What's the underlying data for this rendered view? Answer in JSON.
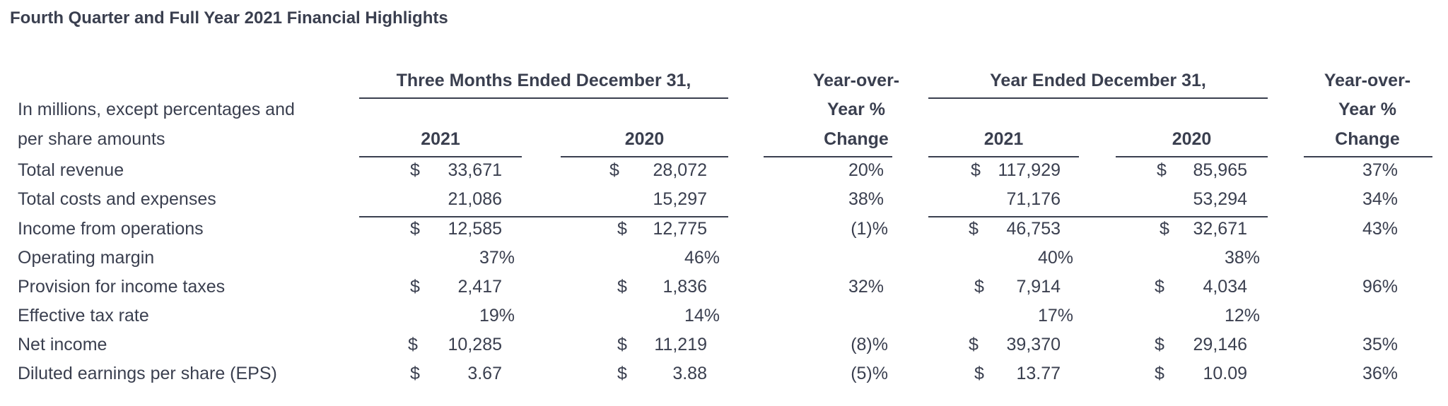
{
  "title": "Fourth Quarter and Full Year 2021 Financial Highlights",
  "header": {
    "group_q": "Three Months Ended December 31,",
    "group_y": "Year Ended December 31,",
    "yoy_line1": "Year-over-",
    "yoy_line2": "Year %",
    "yoy_line3": "Change",
    "desc_line1": "In millions, except percentages and",
    "desc_line2": "per share amounts",
    "col_q2021": "2021",
    "col_q2020": "2020",
    "col_y2021": "2021",
    "col_y2020": "2020"
  },
  "rows": [
    {
      "label": "Total revenue",
      "q21_sym": "$",
      "q21": "33,671",
      "q20_sym": "$",
      "q20": "28,072",
      "qchg": "20%",
      "y21_sym": "$",
      "y21": "117,929",
      "y20_sym": "$",
      "y20": "85,965",
      "ychg": "37%"
    },
    {
      "label": "Total costs and expenses",
      "q21_sym": "",
      "q21": "21,086",
      "q20_sym": "",
      "q20": "15,297",
      "qchg": "38%",
      "y21_sym": "",
      "y21": "71,176",
      "y20_sym": "",
      "y20": "53,294",
      "ychg": "34%"
    },
    {
      "label": "Income from operations",
      "q21_sym": "$",
      "q21": "12,585",
      "q20_sym": "$",
      "q20": "12,775",
      "qchg": "(1)%",
      "y21_sym": "$",
      "y21": "46,753",
      "y20_sym": "$",
      "y20": "32,671",
      "ychg": "43%"
    },
    {
      "label": "Operating margin",
      "q21_sym": "",
      "q21": "37%",
      "q20_sym": "",
      "q20": "46%",
      "qchg": "",
      "y21_sym": "",
      "y21": "40%",
      "y20_sym": "",
      "y20": "38%",
      "ychg": ""
    },
    {
      "label": "Provision for income taxes",
      "q21_sym": "$",
      "q21": "2,417",
      "q20_sym": "$",
      "q20": "1,836",
      "qchg": "32%",
      "y21_sym": "$",
      "y21": "7,914",
      "y20_sym": "$",
      "y20": "4,034",
      "ychg": "96%"
    },
    {
      "label": "Effective tax rate",
      "q21_sym": "",
      "q21": "19%",
      "q20_sym": "",
      "q20": "14%",
      "qchg": "",
      "y21_sym": "",
      "y21": "17%",
      "y20_sym": "",
      "y20": "12%",
      "ychg": ""
    },
    {
      "label": "Net income",
      "q21_sym": "$",
      "q21": "10,285",
      "q20_sym": "$",
      "q20": "11,219",
      "qchg": "(8)%",
      "y21_sym": "$",
      "y21": "39,370",
      "y20_sym": "$",
      "y20": "29,146",
      "ychg": "35%"
    },
    {
      "label": "Diluted earnings per share (EPS)",
      "q21_sym": "$",
      "q21": "3.67",
      "q20_sym": "$",
      "q20": "3.88",
      "qchg": "(5)%",
      "y21_sym": "$",
      "y21": "13.77",
      "y20_sym": "$",
      "y20": "10.09",
      "ychg": "36%"
    }
  ]
}
